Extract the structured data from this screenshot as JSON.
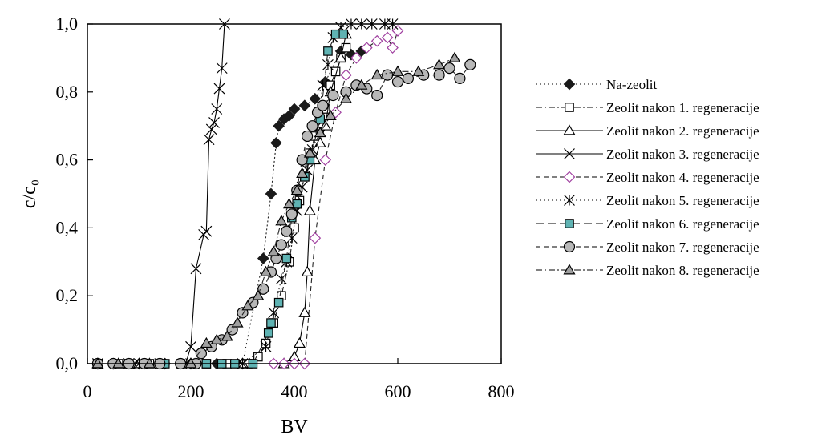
{
  "chart_data": {
    "type": "scatter",
    "xlabel": "BV",
    "ylabel": "c/c₀",
    "xlim": [
      0,
      800
    ],
    "ylim": [
      0,
      1
    ],
    "xticks": [
      "0",
      "200",
      "400",
      "600",
      "800"
    ],
    "yticks": [
      "0,0",
      "0,2",
      "0,4",
      "0,6",
      "0,8",
      "1,0"
    ],
    "grid": false,
    "legend_position": "right",
    "series": [
      {
        "name": "Na-zeolit",
        "marker": "diamond-filled",
        "line": "dotted",
        "color": "#1a1a1a",
        "fill": "#1a1a1a",
        "x": [
          20,
          50,
          100,
          150,
          200,
          250,
          300,
          340,
          355,
          365,
          370,
          380,
          390,
          400,
          420,
          440,
          460,
          490,
          510,
          530
        ],
        "y": [
          0,
          0,
          0,
          0,
          0,
          0,
          0,
          0.31,
          0.5,
          0.65,
          0.7,
          0.72,
          0.73,
          0.75,
          0.76,
          0.78,
          0.83,
          0.92,
          0.91,
          0.92
        ]
      },
      {
        "name": "Zeolit nakon 1. regeneracije",
        "marker": "square-open",
        "line": "dashdot",
        "color": "#000000",
        "fill": "#ffffff",
        "x": [
          20,
          60,
          120,
          180,
          230,
          270,
          310,
          330,
          345,
          360,
          375,
          390,
          400,
          410,
          420,
          430,
          440,
          450,
          460,
          470,
          480,
          490,
          500
        ],
        "y": [
          0,
          0,
          0,
          0,
          0,
          0,
          0,
          0.02,
          0.06,
          0.12,
          0.2,
          0.3,
          0.4,
          0.48,
          0.55,
          0.62,
          0.67,
          0.7,
          0.75,
          0.82,
          0.86,
          0.9,
          0.93
        ]
      },
      {
        "name": "Zeolit nakon 2. regeneracije",
        "marker": "triangle-open",
        "line": "solid",
        "color": "#000000",
        "fill": "#ffffff",
        "x": [
          20,
          100,
          200,
          300,
          380,
          400,
          410,
          420,
          425,
          430,
          440,
          450,
          460,
          470,
          490,
          500
        ],
        "y": [
          0,
          0,
          0,
          0,
          0,
          0.02,
          0.06,
          0.15,
          0.27,
          0.45,
          0.6,
          0.65,
          0.7,
          0.8,
          0.9,
          0.97
        ]
      },
      {
        "name": "Zeolit nakon 3. regeneracije",
        "marker": "x",
        "line": "solid",
        "color": "#000000",
        "fill": "none",
        "x": [
          20,
          80,
          140,
          190,
          200,
          210,
          225,
          230,
          235,
          240,
          245,
          250,
          255,
          260,
          265
        ],
        "y": [
          0,
          0,
          0,
          0,
          0.05,
          0.28,
          0.38,
          0.39,
          0.66,
          0.69,
          0.71,
          0.75,
          0.81,
          0.87,
          1.0
        ]
      },
      {
        "name": "Zeolit nakon 4. regeneracije",
        "marker": "diamond-open",
        "line": "dashed",
        "color": "#a040a0",
        "fill": "#ffffff",
        "x": [
          360,
          380,
          400,
          420,
          440,
          460,
          480,
          500,
          520,
          540,
          560,
          580,
          590,
          600
        ],
        "y": [
          0,
          0,
          0,
          0,
          0.37,
          0.6,
          0.74,
          0.85,
          0.9,
          0.93,
          0.95,
          0.96,
          0.93,
          0.98
        ]
      },
      {
        "name": "Zeolit nakon 5. regeneracije",
        "marker": "asterisk",
        "line": "dotted",
        "color": "#000000",
        "fill": "none",
        "x": [
          20,
          100,
          200,
          300,
          345,
          360,
          375,
          385,
          395,
          405,
          415,
          425,
          435,
          445,
          455,
          465,
          475,
          490,
          510,
          530,
          550,
          575,
          590
        ],
        "y": [
          0,
          0,
          0,
          0,
          0.05,
          0.15,
          0.25,
          0.3,
          0.37,
          0.45,
          0.52,
          0.57,
          0.63,
          0.7,
          0.82,
          0.88,
          0.96,
          0.99,
          1.0,
          1.0,
          1.0,
          1.0,
          1.0
        ]
      },
      {
        "name": "Zeolit nakon 6. regeneracije",
        "marker": "square-filled",
        "line": "longdash",
        "color": "#000000",
        "fill": "#5fb3b3",
        "x": [
          20,
          80,
          150,
          230,
          260,
          285,
          320,
          350,
          355,
          370,
          385,
          395,
          405,
          420,
          430,
          450,
          465,
          480,
          495
        ],
        "y": [
          0,
          0,
          0,
          0,
          0,
          0,
          0,
          0.09,
          0.12,
          0.18,
          0.31,
          0.43,
          0.47,
          0.55,
          0.6,
          0.72,
          0.92,
          0.97,
          0.97
        ]
      },
      {
        "name": "Zeolit nakon 7. regeneracije",
        "marker": "circle-filled",
        "line": "dashed",
        "color": "#000000",
        "fill": "#b8b8b8",
        "x": [
          20,
          50,
          80,
          110,
          140,
          180,
          210,
          220,
          240,
          260,
          280,
          300,
          320,
          340,
          355,
          365,
          375,
          385,
          395,
          405,
          415,
          425,
          435,
          445,
          455,
          475,
          500,
          520,
          540,
          560,
          580,
          600,
          620,
          650,
          680,
          700,
          720,
          740
        ],
        "y": [
          0,
          0,
          0,
          0,
          0,
          0,
          0,
          0.03,
          0.05,
          0.07,
          0.1,
          0.15,
          0.18,
          0.22,
          0.27,
          0.31,
          0.35,
          0.39,
          0.44,
          0.51,
          0.6,
          0.67,
          0.7,
          0.74,
          0.76,
          0.79,
          0.8,
          0.82,
          0.81,
          0.79,
          0.85,
          0.83,
          0.84,
          0.85,
          0.85,
          0.87,
          0.84,
          0.88
        ]
      },
      {
        "name": "Zeolit nakon 8. regeneracije",
        "marker": "triangle-filled",
        "line": "dashdot",
        "color": "#000000",
        "fill": "#a0a0a0",
        "x": [
          20,
          60,
          120,
          200,
          230,
          250,
          270,
          290,
          310,
          330,
          345,
          360,
          375,
          390,
          405,
          415,
          430,
          450,
          470,
          500,
          530,
          560,
          600,
          640,
          680,
          710
        ],
        "y": [
          0,
          0,
          0,
          0,
          0.06,
          0.07,
          0.08,
          0.12,
          0.17,
          0.2,
          0.27,
          0.33,
          0.42,
          0.47,
          0.51,
          0.56,
          0.62,
          0.68,
          0.73,
          0.78,
          0.82,
          0.85,
          0.86,
          0.86,
          0.88,
          0.9
        ]
      }
    ]
  }
}
